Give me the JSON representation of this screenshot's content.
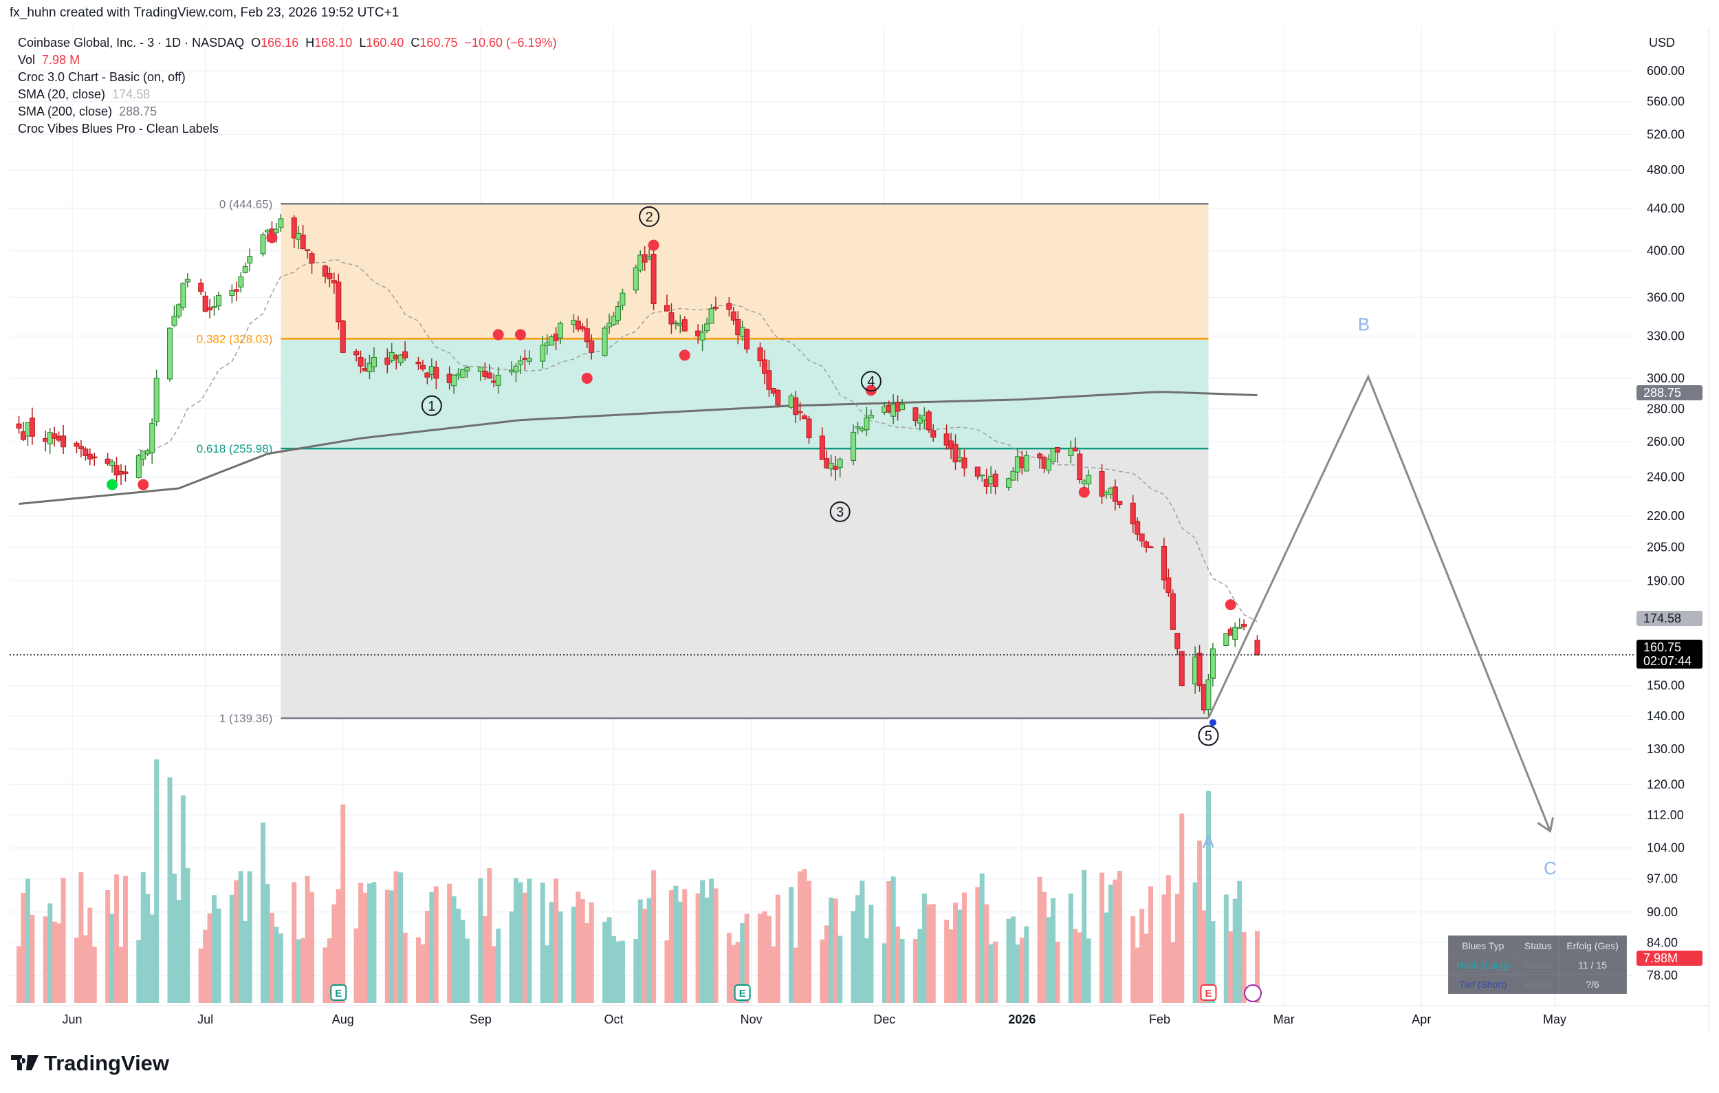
{
  "header": {
    "credit": "fx_huhn created with TradingView.com, Feb 23, 2026 19:52 UTC+1"
  },
  "legend": {
    "symbol": "Coinbase Global, Inc. - 3 · 1D · NASDAQ",
    "o_label": "O",
    "o": "166.16",
    "h_label": "H",
    "h": "168.10",
    "l_label": "L",
    "l": "160.40",
    "c_label": "C",
    "c": "160.75",
    "change": "−10.60 (−6.19%)",
    "vol_label": "Vol",
    "vol": "7.98 M",
    "ind1": "Croc 3.0 Chart - Basic (on, off)",
    "ind2": "SMA (20, close)",
    "ind2_val": "174.58",
    "ind3": "SMA (200, close)",
    "ind3_val": "288.75",
    "ind4": "Croc Vibes Blues Pro - Clean Labels"
  },
  "price_axis": {
    "currency": "USD",
    "ticks": [
      "600.00",
      "560.00",
      "520.00",
      "480.00",
      "440.00",
      "400.00",
      "360.00",
      "330.00",
      "300.00",
      "280.00",
      "260.00",
      "240.00",
      "220.00",
      "205.00",
      "190.00",
      "150.00",
      "140.00",
      "130.00",
      "120.00",
      "112.00",
      "104.00",
      "97.00",
      "90.00",
      "84.00",
      "78.00"
    ],
    "tag_sma200": "288.75",
    "tag_sma20": "174.58",
    "tag_price": "160.75",
    "tag_countdown": "02:07:44",
    "tag_volume": "7.98M"
  },
  "time_axis": {
    "labels": [
      {
        "text": "Jun",
        "date": "2025-06-01"
      },
      {
        "text": "Jul",
        "date": "2025-07-01"
      },
      {
        "text": "Aug",
        "date": "2025-08-01"
      },
      {
        "text": "Sep",
        "date": "2025-09-01"
      },
      {
        "text": "Oct",
        "date": "2025-10-01"
      },
      {
        "text": "Nov",
        "date": "2025-11-01"
      },
      {
        "text": "Dec",
        "date": "2025-12-01"
      },
      {
        "text": "2026",
        "date": "2026-01-01"
      },
      {
        "text": "Feb",
        "date": "2026-02-01"
      },
      {
        "text": "Mar",
        "date": "2026-03-01"
      },
      {
        "text": "Apr",
        "date": "2026-04-01"
      },
      {
        "text": "May",
        "date": "2026-05-01"
      }
    ]
  },
  "fib": {
    "levels": [
      {
        "label": "0 (444.65)",
        "price": 444.65,
        "color": "#787b86"
      },
      {
        "label": "0.382 (328.03)",
        "price": 328.03,
        "color": "#ff9800"
      },
      {
        "label": "0.618 (255.98)",
        "price": 255.98,
        "color": "#089981"
      },
      {
        "label": "1 (139.36)",
        "price": 139.36,
        "color": "#787b86"
      }
    ],
    "start": "2025-07-18",
    "end": "2026-02-12"
  },
  "waves": [
    {
      "label": "1",
      "date": "2025-08-21",
      "price": 282
    },
    {
      "label": "2",
      "date": "2025-10-09",
      "price": 432
    },
    {
      "label": "3",
      "date": "2025-11-21",
      "price": 222
    },
    {
      "label": "4",
      "date": "2025-11-28",
      "price": 298
    },
    {
      "label": "5",
      "date": "2026-02-12",
      "price": 134
    }
  ],
  "abc": {
    "points": [
      {
        "date": "2026-02-12",
        "price": 139.4
      },
      {
        "date": "2026-03-20",
        "price": 301
      },
      {
        "date": "2026-04-30",
        "price": 108
      }
    ],
    "labels": [
      {
        "text": "A",
        "date": "2026-02-12",
        "price": 104
      },
      {
        "text": "B",
        "date": "2026-03-19",
        "price": 334
      },
      {
        "text": "C",
        "date": "2026-04-30",
        "price": 98
      }
    ]
  },
  "table": {
    "headers": [
      "Blues Typ",
      "Status",
      "Erfolg (Ges)"
    ],
    "rows": [
      {
        "type": "Hoch (Long)",
        "status": "Inaktiv",
        "success": "11 / 15",
        "color": "#22a7b5"
      },
      {
        "type": "Tief (Short)",
        "status": "Inaktiv",
        "success": "?/6",
        "color": "#3949ab"
      }
    ]
  },
  "branding": {
    "logo": "TradingView"
  },
  "colors": {
    "up": "#7ee07e",
    "down": "#f23645",
    "vol_up": "#8ecfc9",
    "vol_down": "#f7a9a7",
    "abc": "#90b4e8"
  },
  "chart_data": {
    "type": "candlestick",
    "title": "Coinbase Global, Inc. - 3 · 1D · NASDAQ",
    "scale": "log",
    "ylim": [
      75,
      640
    ],
    "close_keypoints": [
      [
        "2025-05-20",
        268
      ],
      [
        "2025-05-28",
        262
      ],
      [
        "2025-06-05",
        250
      ],
      [
        "2025-06-13",
        242
      ],
      [
        "2025-06-18",
        255
      ],
      [
        "2025-06-20",
        300
      ],
      [
        "2025-06-24",
        345
      ],
      [
        "2025-06-27",
        375
      ],
      [
        "2025-07-02",
        350
      ],
      [
        "2025-07-08",
        365
      ],
      [
        "2025-07-11",
        395
      ],
      [
        "2025-07-17",
        420
      ],
      [
        "2025-07-18",
        430
      ],
      [
        "2025-07-24",
        400
      ],
      [
        "2025-07-30",
        372
      ],
      [
        "2025-08-01",
        318
      ],
      [
        "2025-08-06",
        305
      ],
      [
        "2025-08-12",
        318
      ],
      [
        "2025-08-18",
        310
      ],
      [
        "2025-08-22",
        300
      ],
      [
        "2025-08-28",
        306
      ],
      [
        "2025-09-03",
        300
      ],
      [
        "2025-09-10",
        312
      ],
      [
        "2025-09-16",
        325
      ],
      [
        "2025-09-22",
        342
      ],
      [
        "2025-09-26",
        318
      ],
      [
        "2025-10-01",
        345
      ],
      [
        "2025-10-06",
        385
      ],
      [
        "2025-10-09",
        395
      ],
      [
        "2025-10-10",
        355
      ],
      [
        "2025-10-15",
        340
      ],
      [
        "2025-10-20",
        330
      ],
      [
        "2025-10-24",
        352
      ],
      [
        "2025-10-28",
        342
      ],
      [
        "2025-11-03",
        312
      ],
      [
        "2025-11-06",
        290
      ],
      [
        "2025-11-12",
        278
      ],
      [
        "2025-11-18",
        245
      ],
      [
        "2025-11-21",
        250
      ],
      [
        "2025-11-26",
        268
      ],
      [
        "2025-12-02",
        278
      ],
      [
        "2025-12-05",
        283
      ],
      [
        "2025-12-10",
        276
      ],
      [
        "2025-12-15",
        258
      ],
      [
        "2025-12-19",
        245
      ],
      [
        "2025-12-26",
        235
      ],
      [
        "2026-01-02",
        252
      ],
      [
        "2026-01-07",
        250
      ],
      [
        "2026-01-12",
        256
      ],
      [
        "2026-01-15",
        238
      ],
      [
        "2026-01-20",
        232
      ],
      [
        "2026-01-26",
        216
      ],
      [
        "2026-01-30",
        205
      ],
      [
        "2026-02-03",
        185
      ],
      [
        "2026-02-05",
        163
      ],
      [
        "2026-02-06",
        150
      ],
      [
        "2026-02-09",
        160
      ],
      [
        "2026-02-10",
        150
      ],
      [
        "2026-02-11",
        142
      ],
      [
        "2026-02-12",
        152
      ],
      [
        "2026-02-13",
        163
      ],
      [
        "2026-02-17",
        168
      ],
      [
        "2026-02-19",
        171
      ],
      [
        "2026-02-20",
        171.35
      ],
      [
        "2026-02-23",
        160.75
      ]
    ],
    "sma200_keypoints": [
      [
        "2025-05-20",
        226
      ],
      [
        "2025-06-25",
        234
      ],
      [
        "2025-07-15",
        253
      ],
      [
        "2025-08-05",
        262
      ],
      [
        "2025-09-10",
        273
      ],
      [
        "2025-11-10",
        282
      ],
      [
        "2026-01-01",
        286
      ],
      [
        "2026-02-01",
        291
      ],
      [
        "2026-02-23",
        288.75
      ]
    ],
    "volume_unit": "M",
    "last_volume": 7.98,
    "volume_spikes": [
      [
        "2025-06-20",
        27
      ],
      [
        "2025-06-23",
        25
      ],
      [
        "2025-06-26",
        23
      ],
      [
        "2025-07-14",
        20
      ],
      [
        "2025-08-01",
        22
      ],
      [
        "2026-02-06",
        21
      ],
      [
        "2026-02-12",
        23.5
      ],
      [
        "2026-02-10",
        18
      ]
    ]
  }
}
